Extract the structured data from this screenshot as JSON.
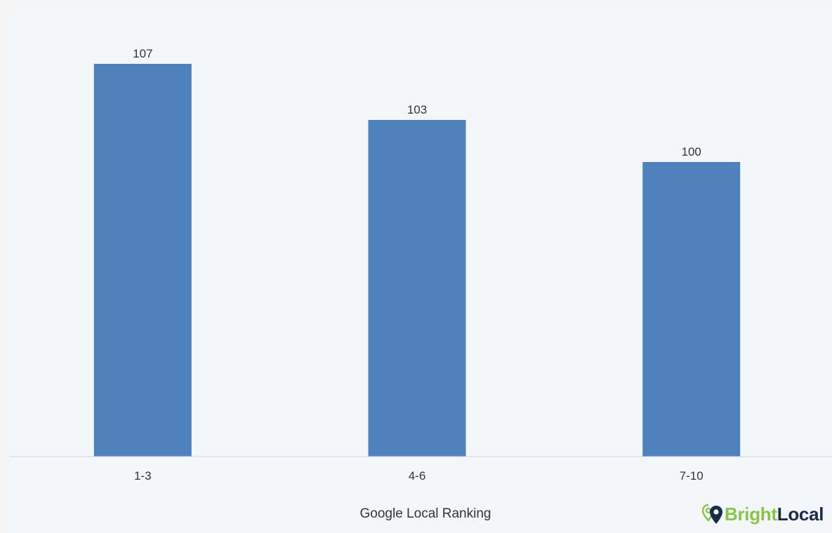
{
  "chart_data": {
    "type": "bar",
    "categories": [
      "1-3",
      "4-6",
      "7-10"
    ],
    "values": [
      107,
      103,
      100
    ],
    "data_labels": [
      "107",
      "103",
      "100"
    ],
    "title": "",
    "xlabel": "Google Local Ranking",
    "ylabel": "",
    "ylim": [
      79,
      108
    ],
    "grid": false,
    "bar_color": "#4f81bd",
    "axis_color": "#ccd6eb"
  },
  "logo": {
    "bright": "Bright",
    "local": "Local",
    "bright_color": "#8bc34a",
    "local_color": "#1b2b48"
  }
}
